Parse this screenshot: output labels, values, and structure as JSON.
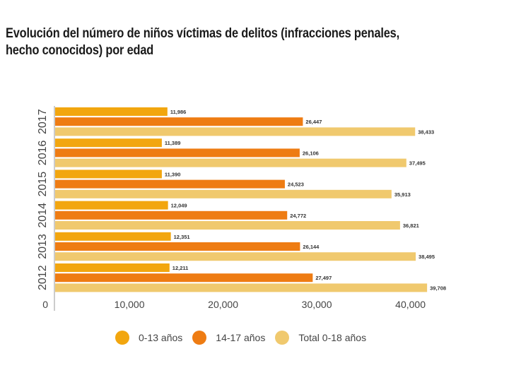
{
  "title": "Evolución del número de niños víctimas de delitos (infracciones penales, hecho conocidos) por edad",
  "chart_data": {
    "type": "bar",
    "orientation": "horizontal",
    "title": "Evolución del número de niños víctimas de delitos (infracciones penales, hecho conocidos) por edad",
    "xlabel": "",
    "ylabel": "",
    "xlim": [
      0,
      40000
    ],
    "x_ticks": [
      0,
      10000,
      20000,
      30000,
      40000
    ],
    "x_tick_labels": [
      "0",
      "10,000",
      "20,000",
      "30,000",
      "40,000"
    ],
    "grid": false,
    "legend_position": "bottom",
    "categories": [
      "2017",
      "2016",
      "2015",
      "2014",
      "2013",
      "2012"
    ],
    "series": [
      {
        "name": "0-13 años",
        "color": "#F2A60F",
        "values": [
          11986,
          11389,
          11390,
          12049,
          12351,
          12211
        ],
        "labels": [
          "11,986",
          "11,389",
          "11,390",
          "12,049",
          "12,351",
          "12,211"
        ]
      },
      {
        "name": "14-17 años",
        "color": "#EE7C13",
        "values": [
          26447,
          26106,
          24523,
          24772,
          26144,
          27497
        ],
        "labels": [
          "26,447",
          "26,106",
          "24,523",
          "24,772",
          "26,144",
          "27,497"
        ]
      },
      {
        "name": "Total 0-18 años",
        "color": "#F0C96E",
        "values": [
          38433,
          37495,
          35913,
          36821,
          38495,
          39708
        ],
        "labels": [
          "38,433",
          "37,495",
          "35,913",
          "36,821",
          "38,495",
          "39,708"
        ]
      }
    ]
  }
}
